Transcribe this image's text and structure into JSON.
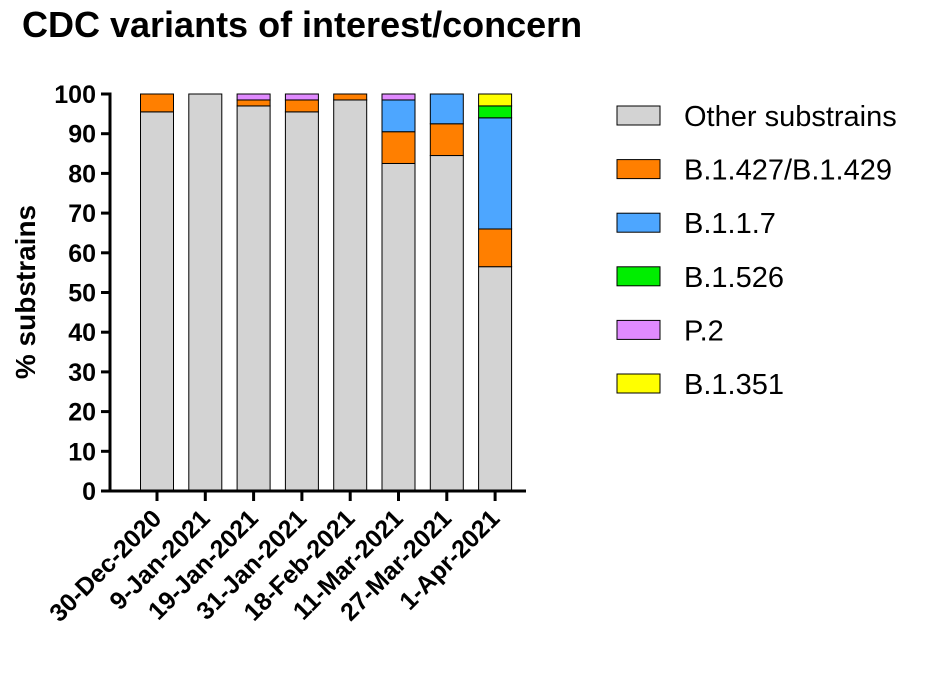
{
  "chart_data": {
    "type": "bar",
    "stacked": true,
    "title": "CDC variants of interest/concern",
    "ylabel": "% substrains",
    "xlabel": "",
    "ylim": [
      0,
      100
    ],
    "yticks": [
      "0",
      "10",
      "20",
      "30",
      "40",
      "50",
      "60",
      "70",
      "80",
      "90",
      "100"
    ],
    "categories": [
      "30-Dec-2020",
      "9-Jan-2021",
      "19-Jan-2021",
      "31-Jan-2021",
      "18-Feb-2021",
      "11-Mar-2021",
      "27-Mar-2021",
      "1-Apr-2021"
    ],
    "series": [
      {
        "name": "Other substrains",
        "color": "#d3d3d3",
        "values": [
          95.5,
          100,
          97,
          95.5,
          98.5,
          82.5,
          84.5,
          56.5
        ]
      },
      {
        "name": "B.1.427/B.1.429",
        "color": "#ff7f00",
        "values": [
          4.5,
          0,
          1.5,
          3,
          1.5,
          8,
          8,
          9.5
        ]
      },
      {
        "name": "B.1.1.7",
        "color": "#4da6ff",
        "values": [
          0,
          0,
          0,
          0,
          0,
          8,
          7.5,
          28
        ]
      },
      {
        "name": "B.1.526",
        "color": "#00ee00",
        "values": [
          0,
          0,
          0,
          0,
          0,
          0,
          0,
          3
        ]
      },
      {
        "name": "P.2",
        "color": "#e08aff",
        "values": [
          0,
          0,
          1.5,
          1.5,
          0,
          1.5,
          0,
          0
        ]
      },
      {
        "name": "B.1.351",
        "color": "#ffff00",
        "values": [
          0,
          0,
          0,
          0,
          0,
          0,
          0,
          3
        ]
      }
    ],
    "legend_position": "right",
    "grid": false
  }
}
